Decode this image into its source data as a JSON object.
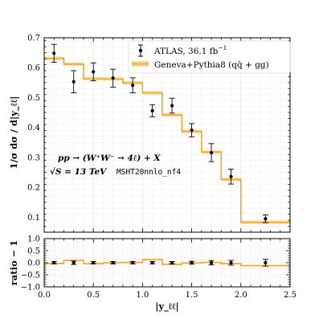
{
  "chart_data": [
    {
      "type": "line",
      "panel": "main",
      "ylabel": "1/σ dσ / d|y_ℓℓ|",
      "ylim": [
        0.05,
        0.7
      ],
      "yticks": [
        0.1,
        0.2,
        0.3,
        0.4,
        0.5,
        0.6,
        0.7
      ],
      "ytick_labels": [
        "0.1",
        "0.2",
        "0.3",
        "0.4",
        "0.5",
        "0.6",
        "0.7"
      ],
      "xlim": [
        0,
        2.5
      ],
      "grid": true,
      "legend_position": "top-right",
      "series": [
        {
          "name": "ATLAS, 36.1 fb⁻¹",
          "kind": "points-with-errorbars",
          "color": "#000000",
          "x": [
            0.1,
            0.3,
            0.5,
            0.7,
            0.9,
            1.1,
            1.3,
            1.5,
            1.7,
            1.9,
            2.25
          ],
          "y": [
            0.648,
            0.553,
            0.586,
            0.565,
            0.541,
            0.456,
            0.473,
            0.391,
            0.316,
            0.236,
            0.095
          ],
          "yerr": [
            0.03,
            0.037,
            0.03,
            0.03,
            0.025,
            0.02,
            0.025,
            0.022,
            0.03,
            0.025,
            0.013
          ],
          "xerr": [
            0.1,
            0.1,
            0.1,
            0.1,
            0.1,
            0.1,
            0.1,
            0.1,
            0.1,
            0.1,
            0.25
          ]
        },
        {
          "name": "Geneva+Pythia8 (qq̄ + gg)",
          "kind": "histogram-step",
          "color": "#f5a623",
          "band_color": "#fbd89a",
          "edges": [
            0,
            0.2,
            0.4,
            0.6,
            0.8,
            1.0,
            1.2,
            1.4,
            1.6,
            1.8,
            2.0,
            2.5
          ],
          "values": [
            0.631,
            0.612,
            0.563,
            0.562,
            0.549,
            0.516,
            0.442,
            0.387,
            0.318,
            0.226,
            0.083
          ]
        }
      ],
      "legend": {
        "data_label": "ATLAS, 36.1 fb",
        "data_label_sup": "−1",
        "model_label": "Geneva+Pythia8 (qq̄ + gg)"
      },
      "annotations": {
        "process": "pp → (W⁺W⁻ → 4ℓ) + X",
        "energy": "√S = 13 TeV",
        "pdf": "MSHT20nnlo_nf4"
      }
    },
    {
      "type": "line",
      "panel": "ratio",
      "xlabel": "|y_ℓℓ|",
      "ylabel": "ratio − 1",
      "xlim": [
        0,
        2.5
      ],
      "ylim": [
        -1.0,
        1.0
      ],
      "xticks": [
        0,
        0.5,
        1.0,
        1.5,
        2.0,
        2.5
      ],
      "xtick_labels": [
        "0.0",
        "0.5",
        "1.0",
        "1.5",
        "2.0",
        "2.5"
      ],
      "yticks": [
        -1.0,
        -0.5,
        0.0,
        0.5,
        1.0
      ],
      "ytick_labels": [
        "−1.0",
        "−0.5",
        "0.0",
        "0.5",
        "1.0"
      ],
      "grid": true,
      "series": [
        {
          "name": "ATLAS, 36.1 fb⁻¹",
          "kind": "points-with-errorbars",
          "color": "#000000",
          "x": [
            0.1,
            0.3,
            0.5,
            0.7,
            0.9,
            1.1,
            1.3,
            1.5,
            1.7,
            1.9,
            2.25
          ],
          "y": [
            0.0,
            0.0,
            0.0,
            0.0,
            0.0,
            0.0,
            0.0,
            0.0,
            0.0,
            0.0,
            0.0
          ],
          "yerr": [
            0.05,
            0.07,
            0.05,
            0.05,
            0.05,
            0.05,
            0.05,
            0.06,
            0.09,
            0.1,
            0.14
          ],
          "xerr": [
            0.1,
            0.1,
            0.1,
            0.1,
            0.1,
            0.1,
            0.1,
            0.1,
            0.1,
            0.1,
            0.25
          ]
        },
        {
          "name": "Geneva+Pythia8 (qq̄ + gg)",
          "kind": "histogram-step",
          "color": "#f5a623",
          "band_color": "#fbd89a",
          "edges": [
            0,
            0.2,
            0.4,
            0.6,
            0.8,
            1.0,
            1.2,
            1.4,
            1.6,
            1.8,
            2.0,
            2.5
          ],
          "values": [
            -0.03,
            0.1,
            -0.04,
            0.0,
            0.01,
            0.13,
            -0.07,
            -0.01,
            0.01,
            -0.04,
            -0.12
          ]
        }
      ]
    }
  ]
}
